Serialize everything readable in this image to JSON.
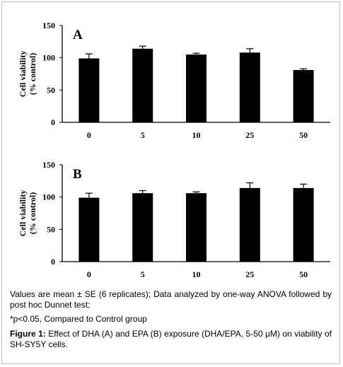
{
  "chart_data": [
    {
      "type": "bar",
      "panel_label": "A",
      "categories": [
        "0",
        "5",
        "10",
        "25",
        "50"
      ],
      "values": [
        99,
        114,
        105,
        108,
        81
      ],
      "errors": [
        7,
        4,
        2,
        6,
        2
      ],
      "ylabel_line1": "Cell viability",
      "ylabel_line2": "(% control)",
      "ylim": [
        0,
        150
      ],
      "yticks": [
        "0",
        "50",
        "100",
        "150"
      ],
      "bar_color": "#000000",
      "grid": false
    },
    {
      "type": "bar",
      "panel_label": "B",
      "categories": [
        "0",
        "5",
        "10",
        "25",
        "50"
      ],
      "values": [
        99,
        106,
        106,
        114,
        114
      ],
      "errors": [
        7,
        4,
        2,
        8,
        6
      ],
      "ylabel_line1": "Cell viability",
      "ylabel_line2": "(% control)",
      "ylim": [
        0,
        150
      ],
      "yticks": [
        "0",
        "50",
        "100",
        "150"
      ],
      "bar_color": "#000000",
      "grid": false
    }
  ],
  "caption": {
    "notes": "Values are mean ± SE (6 replicates); Data analyzed by one-way ANOVA followed by post hoc Dunnet test;",
    "significance": "*p<0.05, Compared to Control group",
    "figure_label": "Figure 1:",
    "figure_text": " Effect of DHA (A) and EPA (B) exposure (DHA/EPA, 5-50 μM) on viability of SH-SY5Y cells."
  }
}
